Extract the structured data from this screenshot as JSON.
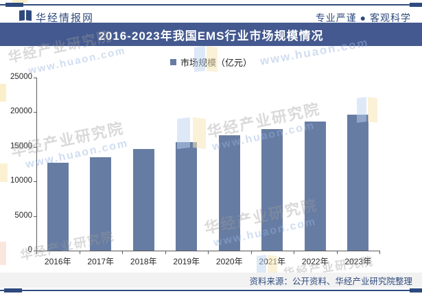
{
  "page": {
    "accent": "#2e4a7d"
  },
  "header": {
    "site_name": "华经情报网",
    "slogan": "专业严谨 ● 客观科学"
  },
  "title_bar": {
    "text": "2016-2023年我国EMS行业市场规模情况",
    "bg": "#44598f"
  },
  "legend": {
    "label": "市场规模（亿元）",
    "marker_color": "#667ca3"
  },
  "chart_data": {
    "type": "bar",
    "title": "2016-2023年我国EMS行业市场规模情况",
    "legend_entries": [
      "市场规模（亿元）"
    ],
    "legend_position": "top",
    "categories": [
      "2016年",
      "2017年",
      "2018年",
      "2019年",
      "2020年",
      "2021年",
      "2022年",
      "2023年"
    ],
    "values": [
      12700,
      13450,
      14650,
      15650,
      16700,
      17600,
      18700,
      19600
    ],
    "xlabel": "",
    "ylabel": "",
    "ylim": [
      0,
      25000
    ],
    "yticks": [
      0,
      5000,
      10000,
      15000,
      20000,
      25000
    ],
    "grid": false,
    "bar_color": "#667ca3"
  },
  "footer": {
    "source": "资料来源：公开资料、华经产业研究院整理"
  },
  "watermark": {
    "text": "华经产业研究院",
    "url": "www.huaon.com"
  }
}
